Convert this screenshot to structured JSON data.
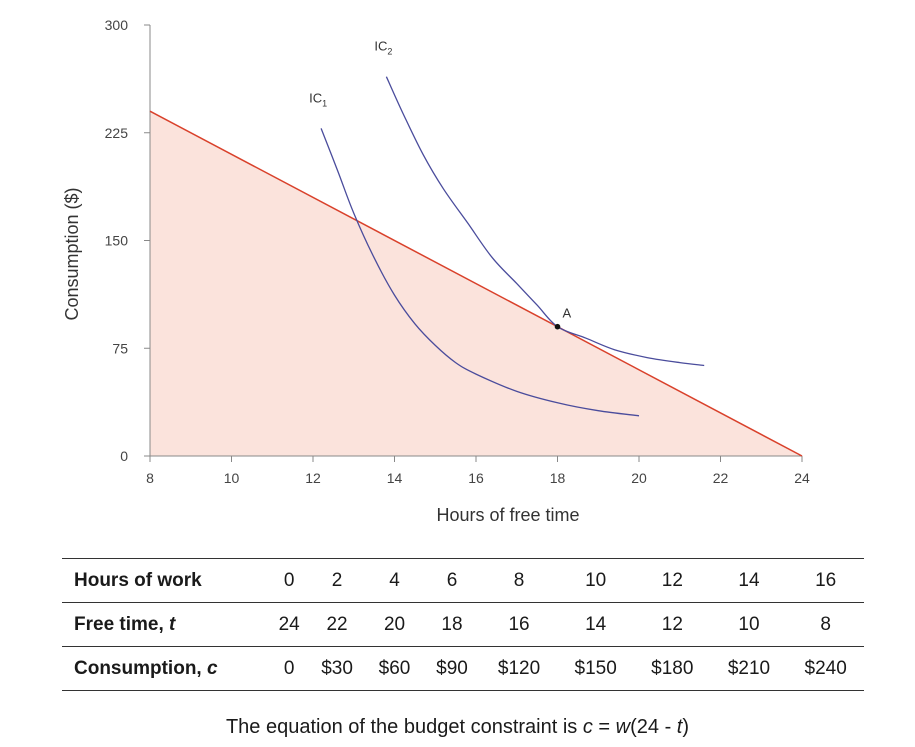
{
  "chart_data": {
    "type": "line",
    "xlabel": "Hours of free time",
    "ylabel": "Consumption ($)",
    "xlim": [
      8,
      24
    ],
    "ylim": [
      0,
      300
    ],
    "xticks": [
      "8",
      "10",
      "12",
      "14",
      "16",
      "18",
      "20",
      "22",
      "24"
    ],
    "yticks": [
      "0",
      "75",
      "150",
      "225",
      "300"
    ],
    "grid": false,
    "budget_constraint": {
      "color": "#d9412b",
      "fill": "#fbe3dc",
      "points": [
        [
          8,
          240
        ],
        [
          24,
          0
        ]
      ]
    },
    "series": [
      {
        "name": "IC₁",
        "label_main": "IC",
        "label_sub": "1",
        "color": "#4a4c9c",
        "points": [
          [
            12.2,
            228
          ],
          [
            12.6,
            199
          ],
          [
            13.0,
            169
          ],
          [
            13.5,
            138
          ],
          [
            14.0,
            112
          ],
          [
            14.5,
            92
          ],
          [
            15.0,
            77
          ],
          [
            15.5,
            65
          ],
          [
            16.0,
            57
          ],
          [
            17.0,
            45
          ],
          [
            18.0,
            37
          ],
          [
            19.0,
            31.5
          ],
          [
            20.0,
            28
          ]
        ]
      },
      {
        "name": "IC₂",
        "label_main": "IC",
        "label_sub": "2",
        "color": "#4a4c9c",
        "points": [
          [
            13.8,
            264
          ],
          [
            14.2,
            239
          ],
          [
            14.7,
            210
          ],
          [
            15.2,
            186
          ],
          [
            15.8,
            162
          ],
          [
            16.4,
            138
          ],
          [
            17.0,
            120
          ],
          [
            17.5,
            105
          ],
          [
            18.0,
            90
          ],
          [
            18.7,
            82
          ],
          [
            19.4,
            74
          ],
          [
            20.2,
            68.5
          ],
          [
            21.0,
            65
          ],
          [
            21.6,
            63
          ]
        ]
      }
    ],
    "point": {
      "label": "A",
      "x": 18,
      "y": 90
    }
  },
  "table": {
    "rows": [
      {
        "head": "Hours of work",
        "cells": [
          "0",
          "2",
          "4",
          "6",
          "8",
          "10",
          "12",
          "14",
          "16"
        ]
      },
      {
        "head": "Free time, ",
        "head_var": "t",
        "cells": [
          "24",
          "22",
          "20",
          "18",
          "16",
          "14",
          "12",
          "10",
          "8"
        ]
      },
      {
        "head": "Consumption, ",
        "head_var": "c",
        "cells": [
          "0",
          "$30",
          "$60",
          "$90",
          "$120",
          "$150",
          "$180",
          "$210",
          "$240"
        ]
      }
    ]
  },
  "caption": {
    "text": "The equation of the budget constraint is ",
    "c": "c",
    "eq": " = ",
    "w": "w",
    "paren": "(24 - ",
    "t": "t",
    "close": ")"
  }
}
